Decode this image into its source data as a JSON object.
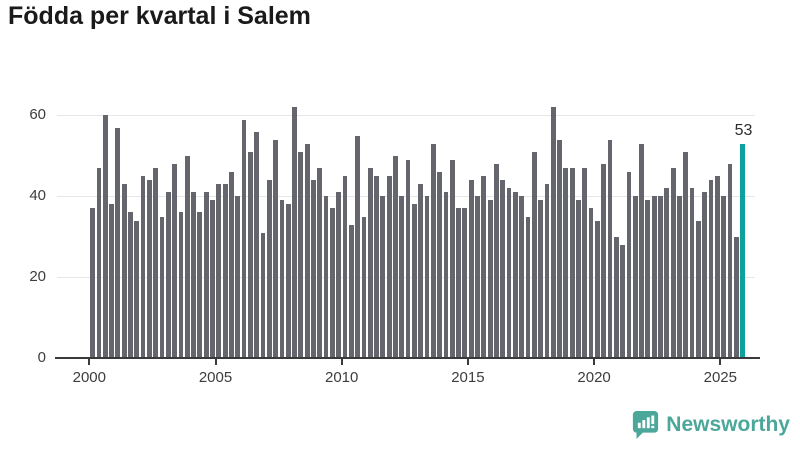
{
  "title": "Födda per kvartal i Salem",
  "annotation": {
    "text": "53",
    "target": "last-bar"
  },
  "logo": {
    "text": "Newsworthy"
  },
  "colors": {
    "bar": "#65656d",
    "highlight": "#0ba29d",
    "grid": "#e6e6e6",
    "axis_line": "#3a3a3a",
    "axis_text": "#3d3d3d",
    "title_text": "#1a1a1a",
    "logo_teal": "#4ba79a"
  },
  "chart_data": {
    "type": "bar",
    "title": "Födda per kvartal i Salem",
    "x_start": "2000Q1",
    "x_end": "2025Q4",
    "period": "quarterly",
    "values": [
      37,
      47,
      60,
      38,
      57,
      43,
      36,
      34,
      45,
      44,
      47,
      35,
      41,
      48,
      36,
      50,
      41,
      36,
      41,
      39,
      43,
      43,
      46,
      40,
      59,
      51,
      56,
      31,
      44,
      54,
      39,
      38,
      62,
      51,
      53,
      44,
      47,
      40,
      37,
      41,
      45,
      33,
      55,
      35,
      47,
      45,
      40,
      45,
      50,
      40,
      49,
      38,
      43,
      40,
      53,
      46,
      41,
      49,
      37,
      37,
      44,
      40,
      45,
      39,
      48,
      44,
      42,
      41,
      40,
      35,
      51,
      39,
      43,
      62,
      54,
      47,
      47,
      39,
      47,
      37,
      34,
      48,
      54,
      30,
      28,
      46,
      40,
      53,
      39,
      40,
      40,
      42,
      47,
      40,
      51,
      42,
      34,
      41,
      44,
      45,
      40,
      48,
      30,
      53
    ],
    "highlight_last_value": 53,
    "xticklabels": [
      "2000",
      "2005",
      "2010",
      "2015",
      "2020",
      "2025"
    ],
    "yticks": [
      0,
      20,
      40,
      60
    ],
    "ylim": [
      0,
      60
    ],
    "grid": true,
    "legend": false
  }
}
